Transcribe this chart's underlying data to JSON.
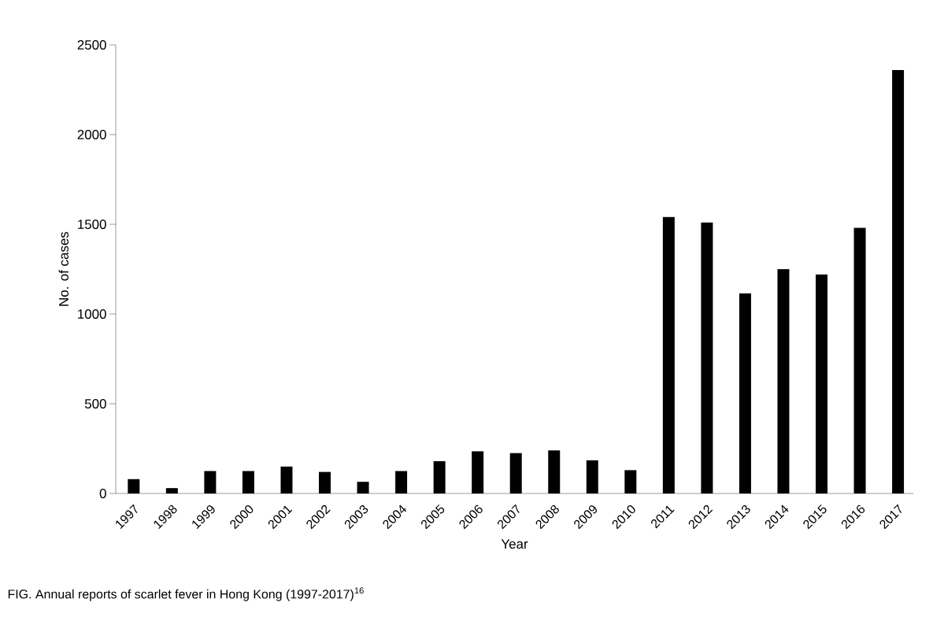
{
  "chart_data": {
    "type": "bar",
    "xlabel": "Year",
    "ylabel": "No. of cases",
    "categories": [
      "1997",
      "1998",
      "1999",
      "2000",
      "2001",
      "2002",
      "2003",
      "2004",
      "2005",
      "2006",
      "2007",
      "2008",
      "2009",
      "2010",
      "2011",
      "2012",
      "2013",
      "2014",
      "2015",
      "2016",
      "2017"
    ],
    "values": [
      80,
      30,
      125,
      125,
      150,
      120,
      65,
      125,
      180,
      235,
      225,
      240,
      185,
      130,
      1540,
      1510,
      1115,
      1250,
      1220,
      1480,
      2360
    ],
    "color": "#000000",
    "ylim": [
      0,
      2500
    ],
    "yticks": [
      0,
      500,
      1000,
      1500,
      2000,
      2500
    ],
    "annotations": [
      "FIG. Annual reports of scarlet fever in Hong Kong (1997-2017)$^{16}$"
    ]
  }
}
